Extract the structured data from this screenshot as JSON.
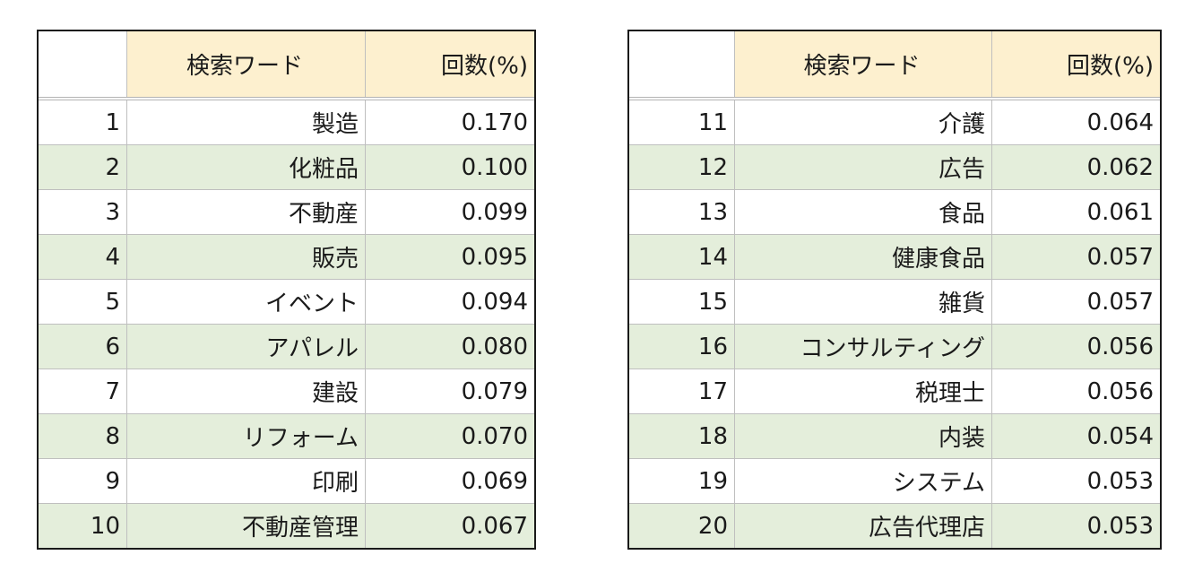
{
  "tables": [
    {
      "headers": {
        "rank": "",
        "word": "検索ワード",
        "pct": "回数(%)"
      },
      "rows": [
        {
          "rank": "1",
          "word": "製造",
          "pct": "0.170"
        },
        {
          "rank": "2",
          "word": "化粧品",
          "pct": "0.100"
        },
        {
          "rank": "3",
          "word": "不動産",
          "pct": "0.099"
        },
        {
          "rank": "4",
          "word": "販売",
          "pct": "0.095"
        },
        {
          "rank": "5",
          "word": "イベント",
          "pct": "0.094"
        },
        {
          "rank": "6",
          "word": "アパレル",
          "pct": "0.080"
        },
        {
          "rank": "7",
          "word": "建設",
          "pct": "0.079"
        },
        {
          "rank": "8",
          "word": "リフォーム",
          "pct": "0.070"
        },
        {
          "rank": "9",
          "word": "印刷",
          "pct": "0.069"
        },
        {
          "rank": "10",
          "word": "不動産管理",
          "pct": "0.067"
        }
      ]
    },
    {
      "headers": {
        "rank": "",
        "word": "検索ワード",
        "pct": "回数(%)"
      },
      "rows": [
        {
          "rank": "11",
          "word": "介護",
          "pct": "0.064"
        },
        {
          "rank": "12",
          "word": "広告",
          "pct": "0.062"
        },
        {
          "rank": "13",
          "word": "食品",
          "pct": "0.061"
        },
        {
          "rank": "14",
          "word": "健康食品",
          "pct": "0.057"
        },
        {
          "rank": "15",
          "word": "雑貨",
          "pct": "0.057"
        },
        {
          "rank": "16",
          "word": "コンサルティング",
          "pct": "0.056"
        },
        {
          "rank": "17",
          "word": "税理士",
          "pct": "0.056"
        },
        {
          "rank": "18",
          "word": "内装",
          "pct": "0.054"
        },
        {
          "rank": "19",
          "word": "システム",
          "pct": "0.053"
        },
        {
          "rank": "20",
          "word": "広告代理店",
          "pct": "0.053"
        }
      ]
    }
  ],
  "colors": {
    "header_fill": "#fdf0cf",
    "band_fill": "#e4eedb",
    "grid": "#bfbfbf",
    "frame": "#1a1a1a"
  }
}
